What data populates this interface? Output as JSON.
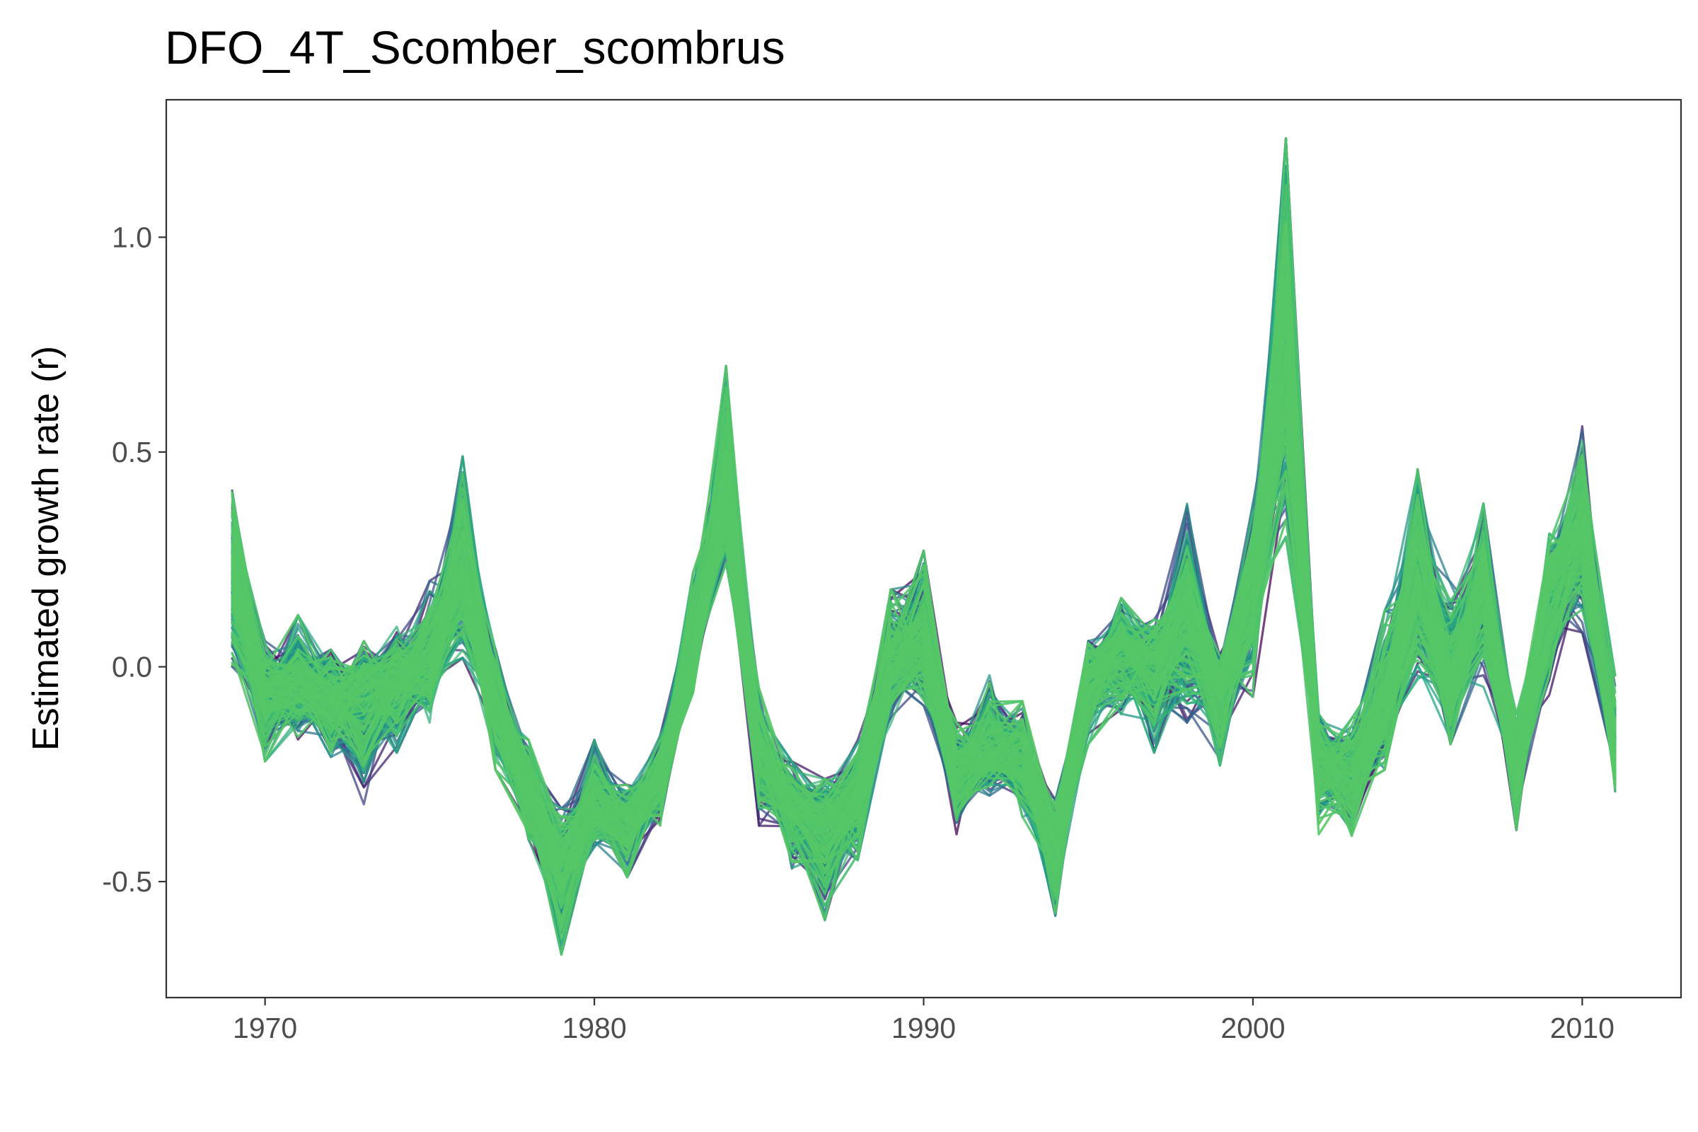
{
  "chart_data": {
    "type": "line",
    "title": "DFO_4T_Scomber_scombrus",
    "xlabel": "",
    "ylabel": "Estimated growth rate (r)",
    "xlim": [
      1967,
      2013
    ],
    "ylim": [
      -0.77,
      1.32
    ],
    "x_ticks": [
      1970,
      1980,
      1990,
      2000,
      2010
    ],
    "x_tick_labels": [
      "1970",
      "1980",
      "1990",
      "2000",
      "2010"
    ],
    "y_ticks": [
      -0.5,
      0.0,
      0.5,
      1.0
    ],
    "y_tick_labels": [
      "-0.5",
      "0.0",
      "0.5",
      "1.0"
    ],
    "grid": false,
    "legend": "none",
    "colormap": [
      "#440154",
      "#414487",
      "#2a788e",
      "#22a884",
      "#4ec36b",
      "#57c766"
    ],
    "n_series": 300,
    "x": [
      1969,
      1970,
      1971,
      1972,
      1973,
      1974,
      1975,
      1976,
      1977,
      1978,
      1979,
      1980,
      1981,
      1982,
      1983,
      1984,
      1985,
      1986,
      1987,
      1988,
      1989,
      1990,
      1991,
      1992,
      1993,
      1994,
      1995,
      1996,
      1997,
      1998,
      1999,
      2000,
      2001,
      2002,
      2003,
      2004,
      2005,
      2006,
      2007,
      2008,
      2009,
      2010,
      2011
    ],
    "series_median": [
      0.22,
      -0.06,
      -0.04,
      -0.08,
      -0.05,
      -0.03,
      0.0,
      0.24,
      -0.08,
      -0.3,
      -0.47,
      -0.33,
      -0.36,
      -0.25,
      0.03,
      0.44,
      -0.2,
      -0.33,
      -0.36,
      -0.3,
      0.0,
      0.05,
      -0.25,
      -0.2,
      -0.22,
      -0.43,
      -0.02,
      0.05,
      0.0,
      0.1,
      -0.05,
      0.2,
      0.8,
      -0.2,
      -0.25,
      -0.1,
      0.2,
      -0.05,
      0.2,
      -0.25,
      0.18,
      0.32,
      -0.22
    ],
    "series_min": [
      0.0,
      -0.22,
      -0.17,
      -0.21,
      -0.32,
      -0.2,
      -0.13,
      0.02,
      -0.24,
      -0.42,
      -0.67,
      -0.42,
      -0.49,
      -0.37,
      -0.06,
      0.18,
      -0.37,
      -0.47,
      -0.59,
      -0.45,
      -0.14,
      -0.09,
      -0.39,
      -0.3,
      -0.35,
      -0.58,
      -0.18,
      -0.14,
      -0.2,
      -0.13,
      -0.23,
      -0.07,
      0.3,
      -0.39,
      -0.42,
      -0.24,
      -0.03,
      -0.18,
      -0.06,
      -0.38,
      -0.08,
      0.08,
      -0.29
    ],
    "series_max": [
      0.41,
      0.06,
      0.12,
      0.04,
      0.06,
      0.1,
      0.2,
      0.49,
      0.04,
      -0.17,
      -0.33,
      -0.17,
      -0.27,
      -0.16,
      0.22,
      0.7,
      -0.05,
      -0.22,
      -0.26,
      -0.17,
      0.18,
      0.27,
      -0.13,
      -0.01,
      -0.08,
      -0.31,
      0.06,
      0.16,
      0.11,
      0.38,
      0.03,
      0.38,
      1.23,
      -0.11,
      -0.12,
      0.13,
      0.46,
      0.21,
      0.38,
      -0.11,
      0.31,
      0.56,
      -0.02
    ]
  }
}
